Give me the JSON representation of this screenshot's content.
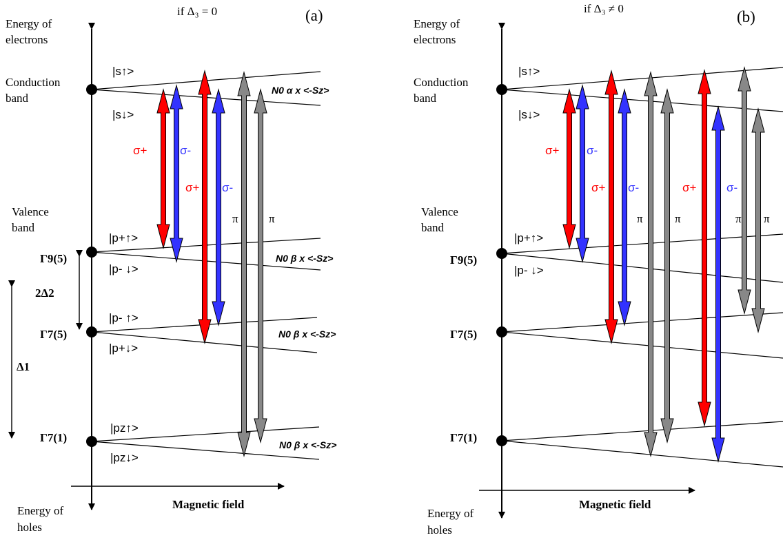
{
  "panel_a": {
    "condition": "if Δ₃ = 0",
    "tag": "(a)",
    "axis_top": [
      "Energy of",
      "electrons"
    ],
    "axis_bottom": [
      "Energy of",
      "holes"
    ],
    "x_axis_label": "Magnetic field",
    "conduction_band": [
      "Conduction",
      "band"
    ],
    "valence_band": [
      "Valence",
      "band"
    ],
    "gamma_labels": [
      "Γ9(5)",
      "Γ7(5)",
      "Γ7(1)"
    ],
    "states": [
      "|s↑>",
      "|s↓>",
      "|p+↑>",
      "|p- ↓>",
      "|p- ↑>",
      "|p+↓>",
      "|pz↑>",
      "|pz↓>"
    ],
    "splitting_formulas": [
      "N0 α x <-Sz>",
      "N0 β x <-Sz>",
      "N0 β x <-Sz>",
      "N0 β x <-Sz>"
    ],
    "delta_labels": [
      "2Δ2",
      "Δ1"
    ],
    "polarizations": [
      "σ+",
      "σ-",
      "σ+",
      "σ-",
      "π",
      "π"
    ]
  },
  "panel_b": {
    "condition": "if Δ₃ ≠ 0",
    "tag": "(b)",
    "axis_top": [
      "Energy of",
      "electrons"
    ],
    "axis_bottom": [
      "Energy of",
      "holes"
    ],
    "x_axis_label": "Magnetic field",
    "conduction_band": [
      "Conduction",
      "band"
    ],
    "valence_band": [
      "Valence",
      "band"
    ],
    "gamma_labels": [
      "Γ9(5)",
      "Γ7(5)",
      "Γ7(1)"
    ],
    "states": [
      "|s↑>",
      "|s↓>",
      "|p+↑>",
      "|p- ↓>"
    ],
    "polarizations": [
      "σ+",
      "σ-",
      "σ+",
      "σ-",
      "π",
      "π",
      "σ+",
      "σ-",
      "π",
      "π"
    ]
  },
  "colors": {
    "sigma_plus": "#ff0000",
    "sigma_minus": "#3333ff",
    "pi": "#888888"
  }
}
